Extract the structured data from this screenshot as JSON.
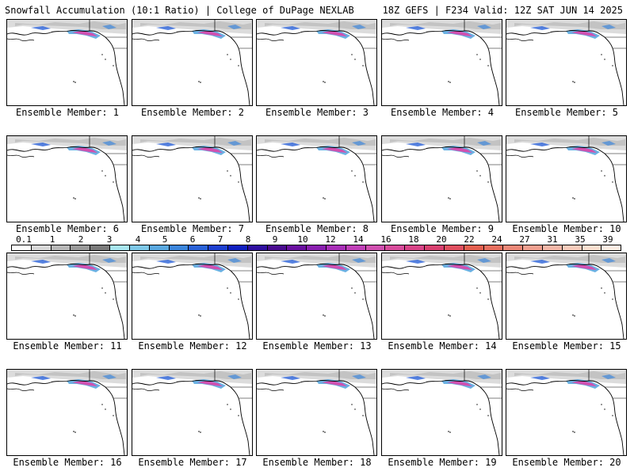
{
  "header": {
    "left": "Snowfall Accumulation (10:1 Ratio) | College of DuPage NEXLAB",
    "right": "18Z GEFS | F234 Valid: 12Z SAT JUN 14 2025"
  },
  "panels": [
    {
      "label": "Ensemble Member: 1"
    },
    {
      "label": "Ensemble Member: 2"
    },
    {
      "label": "Ensemble Member: 3"
    },
    {
      "label": "Ensemble Member: 4"
    },
    {
      "label": "Ensemble Member: 5"
    },
    {
      "label": "Ensemble Member: 6"
    },
    {
      "label": "Ensemble Member: 7"
    },
    {
      "label": "Ensemble Member: 8"
    },
    {
      "label": "Ensemble Member: 9"
    },
    {
      "label": "Ensemble Member: 10"
    },
    {
      "label": "Ensemble Member: 11"
    },
    {
      "label": "Ensemble Member: 12"
    },
    {
      "label": "Ensemble Member: 13"
    },
    {
      "label": "Ensemble Member: 14"
    },
    {
      "label": "Ensemble Member: 15"
    },
    {
      "label": "Ensemble Member: 16"
    },
    {
      "label": "Ensemble Member: 17"
    },
    {
      "label": "Ensemble Member: 18"
    },
    {
      "label": "Ensemble Member: 19"
    },
    {
      "label": "Ensemble Member: 20"
    }
  ],
  "colorbar": {
    "labels": [
      "0.1",
      "1",
      "2",
      "3",
      "4",
      "5",
      "6",
      "7",
      "8",
      "9",
      "10",
      "12",
      "14",
      "16",
      "18",
      "20",
      "22",
      "24",
      "27",
      "31",
      "35",
      "39"
    ],
    "colors": [
      "#ffffff",
      "#d8d8d8",
      "#b8b8b8",
      "#9a9a9a",
      "#7a7a7a",
      "#a8e6f0",
      "#7ec8e8",
      "#5aa8e0",
      "#3c86dc",
      "#2a62d8",
      "#1e40d0",
      "#1020c0",
      "#3010a0",
      "#4a0c90",
      "#6a10a0",
      "#8a20b0",
      "#a830b8",
      "#c040b8",
      "#d050b0",
      "#d84c9c",
      "#d84488",
      "#d84070",
      "#e05060",
      "#e46050",
      "#e87060",
      "#ec8878",
      "#f0a090",
      "#f4b8a8",
      "#f8ccbc",
      "#fbe0d0",
      "#fdeee4"
    ]
  }
}
